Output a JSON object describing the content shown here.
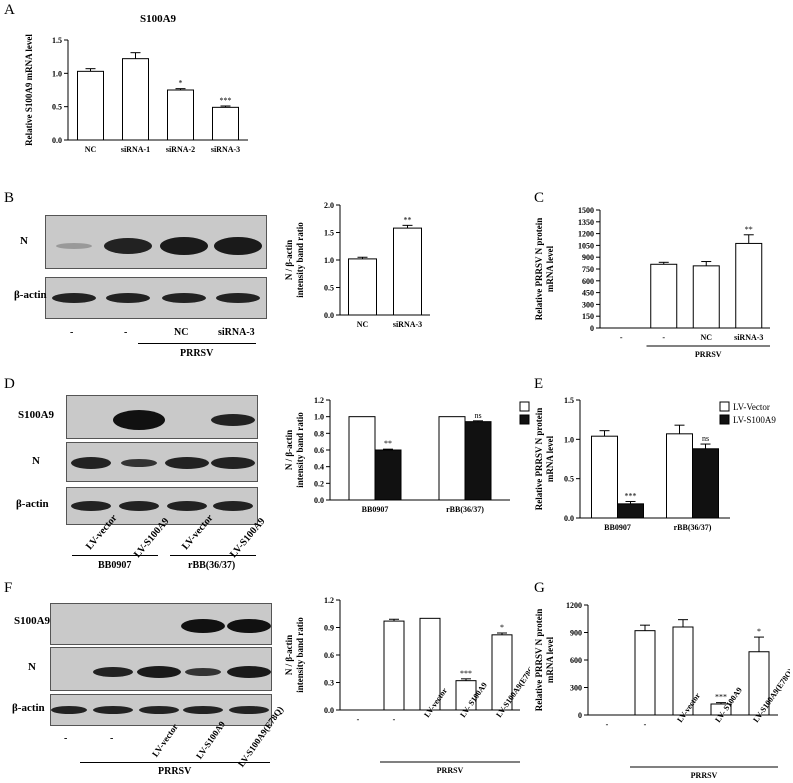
{
  "panels": {
    "A": "A",
    "B": "B",
    "C": "C",
    "D": "D",
    "E": "E",
    "F": "F",
    "G": "G"
  },
  "blots": {
    "B": {
      "bands": [
        "N",
        "β-actin"
      ],
      "lanes": [
        "-",
        "-",
        "NC",
        "siRNA-3"
      ],
      "group": "PRRSV"
    },
    "D": {
      "bands": [
        "S100A9",
        "N",
        "β-actin"
      ],
      "lanes": [
        "LV-vector",
        "LV-S100A9",
        "LV-vector",
        "LV-S100A9"
      ],
      "groups": [
        "BB0907",
        "rBB(36/37)"
      ]
    },
    "F": {
      "bands": [
        "S100A9",
        "N",
        "β-actin"
      ],
      "lanes": [
        "-",
        "-",
        "LV-vector",
        "LV-S100A9",
        "LV-S100A9(E78Q)"
      ],
      "group": "PRRSV"
    }
  },
  "chart_data": [
    {
      "id": "A",
      "type": "bar",
      "title": "S100A9",
      "ylabel": "Relative S100A9 mRNA level",
      "categories": [
        "NC",
        "siRNA-1",
        "siRNA-2",
        "siRNA-3"
      ],
      "values": [
        1.03,
        1.22,
        0.75,
        0.49
      ],
      "errors": [
        0.04,
        0.09,
        0.02,
        0.02
      ],
      "sig": [
        "",
        "",
        "*",
        "***"
      ],
      "ylim": [
        0,
        1.5
      ],
      "yticks": [
        "0.0",
        "0.5",
        "1.0",
        "1.5"
      ]
    },
    {
      "id": "B",
      "type": "bar",
      "ylabel": "N / β-actin intensity band ratio",
      "categories": [
        "NC",
        "siRNA-3"
      ],
      "values": [
        1.02,
        1.58
      ],
      "errors": [
        0.03,
        0.05
      ],
      "sig": [
        "",
        "**"
      ],
      "ylim": [
        0,
        2.0
      ],
      "yticks": [
        "0.0",
        "0.5",
        "1.0",
        "1.5",
        "2.0"
      ]
    },
    {
      "id": "C",
      "type": "bar",
      "ylabel": "Relative PRRSV N protein mRNA level",
      "categories": [
        "-",
        "-",
        "NC",
        "siRNA-3"
      ],
      "group_label": "PRRSV",
      "values": [
        0,
        810,
        790,
        1075
      ],
      "errors": [
        0,
        25,
        55,
        110
      ],
      "sig": [
        "",
        "",
        "",
        "**"
      ],
      "ylim": [
        0,
        1500
      ],
      "yticks": [
        "0",
        "150",
        "300",
        "450",
        "600",
        "750",
        "900",
        "1050",
        "1200",
        "1350",
        "1500"
      ]
    },
    {
      "id": "D",
      "type": "bar",
      "ylabel": "N / β-actin intensity band ratio",
      "categories": [
        "BB0907",
        "rBB(36/37)"
      ],
      "series": [
        {
          "name": "LV-Vector",
          "values": [
            1.0,
            1.0
          ],
          "errors": [
            0,
            0
          ],
          "sig": [
            "",
            ""
          ]
        },
        {
          "name": "LV-S100A9",
          "values": [
            0.6,
            0.94
          ],
          "errors": [
            0.01,
            0.01
          ],
          "sig": [
            "**",
            "ns"
          ]
        }
      ],
      "ylim": [
        0,
        1.2
      ],
      "yticks": [
        "0.0",
        "0.2",
        "0.4",
        "0.6",
        "0.8",
        "1.0",
        "1.2"
      ]
    },
    {
      "id": "E",
      "type": "bar",
      "ylabel": "Relative PRRSV N protein mRNA level",
      "categories": [
        "BB0907",
        "rBB(36/37)"
      ],
      "series": [
        {
          "name": "LV-Vector",
          "values": [
            1.04,
            1.07
          ],
          "errors": [
            0.07,
            0.11
          ],
          "sig": [
            "",
            ""
          ]
        },
        {
          "name": "LV-S100A9",
          "values": [
            0.18,
            0.88
          ],
          "errors": [
            0.03,
            0.06
          ],
          "sig": [
            "***",
            "ns"
          ]
        }
      ],
      "ylim": [
        0,
        1.5
      ],
      "yticks": [
        "0.0",
        "0.5",
        "1.0",
        "1.5"
      ]
    },
    {
      "id": "F",
      "type": "bar",
      "ylabel": "N / β-actin intensity band ratio",
      "categories": [
        "-",
        "-",
        "LV-vector",
        "LV- S100A9",
        "LV-S100A9(E78Q)"
      ],
      "group_label": "PRRSV",
      "values": [
        0,
        0.97,
        1.0,
        0.32,
        0.82
      ],
      "errors": [
        0,
        0.02,
        0,
        0.02,
        0.02
      ],
      "sig": [
        "",
        "",
        "",
        "***",
        "*"
      ],
      "ylim": [
        0,
        1.2
      ],
      "yticks": [
        "0.0",
        "0.3",
        "0.6",
        "0.9",
        "1.2"
      ]
    },
    {
      "id": "G",
      "type": "bar",
      "ylabel": "Relative PRRSV N protein mRNA level",
      "categories": [
        "-",
        "-",
        "LV-vector",
        "LV- S100A9",
        "LV-S100A9(E78Q)"
      ],
      "group_label": "PRRSV",
      "values": [
        0,
        920,
        960,
        120,
        690
      ],
      "errors": [
        0,
        60,
        80,
        15,
        160
      ],
      "sig": [
        "",
        "",
        "",
        "***",
        "*"
      ],
      "ylim": [
        0,
        1200
      ],
      "yticks": [
        "0",
        "300",
        "600",
        "900",
        "1200"
      ]
    }
  ]
}
